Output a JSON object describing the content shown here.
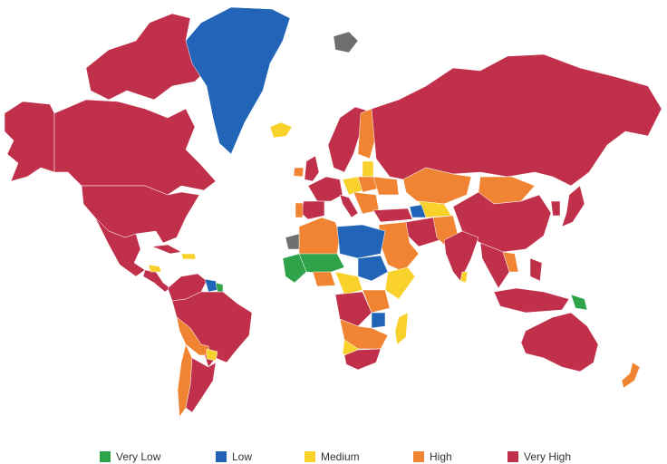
{
  "colors": {
    "very_low": "#2ea34a",
    "low": "#2265b8",
    "medium": "#f8d12a",
    "high": "#f08433",
    "very_high": "#c0304a",
    "no_data": "#6f6f6f"
  },
  "legend": [
    {
      "key": "very_low",
      "label": "Very Low"
    },
    {
      "key": "low",
      "label": "Low"
    },
    {
      "key": "medium",
      "label": "Medium"
    },
    {
      "key": "high",
      "label": "High"
    },
    {
      "key": "very_high",
      "label": "Very High"
    }
  ],
  "regions": [
    {
      "name": "canada",
      "level": "very_high"
    },
    {
      "name": "alaska",
      "level": "very_high"
    },
    {
      "name": "canadian-arctic-islands",
      "level": "very_high"
    },
    {
      "name": "usa",
      "level": "very_high"
    },
    {
      "name": "mexico",
      "level": "very_high"
    },
    {
      "name": "central-america",
      "level": "very_high"
    },
    {
      "name": "central-america-medium",
      "level": "medium"
    },
    {
      "name": "greenland",
      "level": "low"
    },
    {
      "name": "iceland",
      "level": "medium"
    },
    {
      "name": "svalbard",
      "level": "no_data"
    },
    {
      "name": "cuba",
      "level": "very_high"
    },
    {
      "name": "caribbean-medium",
      "level": "medium"
    },
    {
      "name": "south-america",
      "level": "very_high"
    },
    {
      "name": "venezuela",
      "level": "very_high"
    },
    {
      "name": "guyana-suriname",
      "level": "low"
    },
    {
      "name": "french-guiana",
      "level": "very_low"
    },
    {
      "name": "peru-bolivia",
      "level": "high"
    },
    {
      "name": "paraguay",
      "level": "medium"
    },
    {
      "name": "chile-argentina-west",
      "level": "high"
    },
    {
      "name": "argentina",
      "level": "very_high"
    },
    {
      "name": "scandinavia",
      "level": "very_high"
    },
    {
      "name": "finland",
      "level": "high"
    },
    {
      "name": "uk",
      "level": "very_high"
    },
    {
      "name": "ireland",
      "level": "high"
    },
    {
      "name": "western-europe",
      "level": "very_high"
    },
    {
      "name": "spain",
      "level": "very_high"
    },
    {
      "name": "portugal",
      "level": "high"
    },
    {
      "name": "central-europe-high",
      "level": "high"
    },
    {
      "name": "central-europe-medium",
      "level": "medium"
    },
    {
      "name": "italy",
      "level": "very_high"
    },
    {
      "name": "balkans",
      "level": "high"
    },
    {
      "name": "ukraine",
      "level": "high"
    },
    {
      "name": "baltics",
      "level": "medium"
    },
    {
      "name": "turkey",
      "level": "very_high"
    },
    {
      "name": "russia",
      "level": "very_high"
    },
    {
      "name": "kazakhstan",
      "level": "high"
    },
    {
      "name": "mongolia",
      "level": "high"
    },
    {
      "name": "china",
      "level": "very_high"
    },
    {
      "name": "central-asia-medium",
      "level": "medium"
    },
    {
      "name": "central-asia-low",
      "level": "low"
    },
    {
      "name": "middle-east-high",
      "level": "high"
    },
    {
      "name": "iran",
      "level": "very_high"
    },
    {
      "name": "india",
      "level": "very_high"
    },
    {
      "name": "pakistan-afghanistan",
      "level": "high"
    },
    {
      "name": "south-asia-medium",
      "level": "medium"
    },
    {
      "name": "southeast-asia",
      "level": "very_high"
    },
    {
      "name": "indochina-high",
      "level": "high"
    },
    {
      "name": "japan",
      "level": "very_high"
    },
    {
      "name": "korea",
      "level": "very_high"
    },
    {
      "name": "indonesia",
      "level": "very_high"
    },
    {
      "name": "philippines",
      "level": "very_high"
    },
    {
      "name": "papua-new-guinea",
      "level": "very_low"
    },
    {
      "name": "australia",
      "level": "very_high"
    },
    {
      "name": "new-zealand",
      "level": "high"
    },
    {
      "name": "north-africa-high",
      "level": "high"
    },
    {
      "name": "libya-egypt-low",
      "level": "low"
    },
    {
      "name": "west-africa-green",
      "level": "very_low"
    },
    {
      "name": "west-africa-high",
      "level": "high"
    },
    {
      "name": "sahel-green",
      "level": "very_low"
    },
    {
      "name": "sudan",
      "level": "low"
    },
    {
      "name": "horn-of-africa",
      "level": "medium"
    },
    {
      "name": "central-africa-medium",
      "level": "medium"
    },
    {
      "name": "central-africa-high",
      "level": "high"
    },
    {
      "name": "congo",
      "level": "very_high"
    },
    {
      "name": "east-africa-low",
      "level": "low"
    },
    {
      "name": "southern-africa-high",
      "level": "high"
    },
    {
      "name": "southern-africa-medium",
      "level": "medium"
    },
    {
      "name": "south-africa",
      "level": "very_high"
    },
    {
      "name": "madagascar",
      "level": "medium"
    },
    {
      "name": "western-sahara",
      "level": "no_data"
    }
  ]
}
